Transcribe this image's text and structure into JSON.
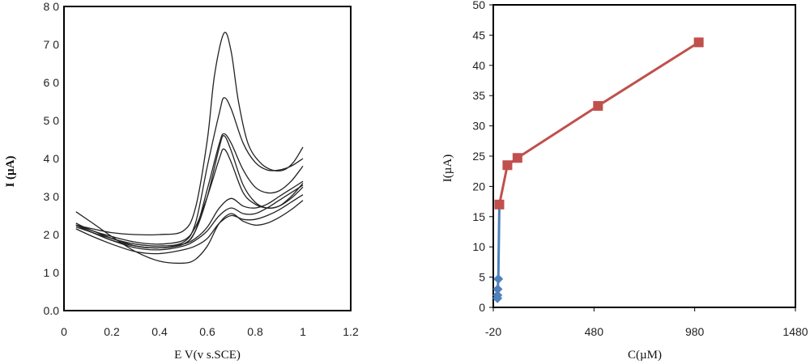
{
  "chart_data": [
    {
      "type": "line",
      "xlabel": "E V(v s.SCE)",
      "ylabel": "I (µA)",
      "xlim": [
        0,
        1.2
      ],
      "ylim": [
        0,
        80
      ],
      "xticks": [
        0,
        0.2,
        0.4,
        0.6,
        0.8,
        1,
        1.2
      ],
      "xtick_labels": [
        "0",
        "0.2",
        "0.4",
        "0.6",
        "0.8",
        "1",
        "1.2"
      ],
      "yticks": [
        0,
        10,
        20,
        30,
        40,
        50,
        60,
        70,
        80
      ],
      "ytick_labels": [
        "0.0",
        "1 0",
        "2 0",
        "3 0",
        "4 0",
        "5 0",
        "6 0",
        "7 0",
        "8 0"
      ],
      "grid": false,
      "line_color": "#222222",
      "series": [
        {
          "values": [
            [
              0.05,
              26
            ],
            [
              0.12,
              23
            ],
            [
              0.2,
              19.5
            ],
            [
              0.3,
              15.5
            ],
            [
              0.4,
              13
            ],
            [
              0.5,
              12.5
            ],
            [
              0.55,
              13.5
            ],
            [
              0.6,
              17
            ],
            [
              0.65,
              23
            ],
            [
              0.7,
              25.5
            ],
            [
              0.75,
              23.5
            ],
            [
              0.8,
              22.5
            ],
            [
              0.85,
              23
            ],
            [
              0.9,
              24.5
            ],
            [
              0.95,
              26.5
            ],
            [
              1.0,
              29
            ]
          ]
        },
        {
          "values": [
            [
              0.05,
              21.5
            ],
            [
              0.12,
              19.5
            ],
            [
              0.2,
              17.5
            ],
            [
              0.3,
              15.5
            ],
            [
              0.4,
              15
            ],
            [
              0.5,
              16
            ],
            [
              0.55,
              17
            ],
            [
              0.6,
              19
            ],
            [
              0.65,
              23
            ],
            [
              0.7,
              25
            ],
            [
              0.75,
              24
            ],
            [
              0.8,
              24
            ],
            [
              0.85,
              25
            ],
            [
              0.9,
              26.5
            ],
            [
              0.95,
              28.5
            ],
            [
              1.0,
              30.5
            ]
          ]
        },
        {
          "values": [
            [
              0.05,
              22.5
            ],
            [
              0.12,
              20.5
            ],
            [
              0.2,
              18.5
            ],
            [
              0.3,
              16.5
            ],
            [
              0.4,
              16
            ],
            [
              0.5,
              17
            ],
            [
              0.55,
              18.5
            ],
            [
              0.6,
              21
            ],
            [
              0.65,
              25
            ],
            [
              0.7,
              27
            ],
            [
              0.75,
              25.5
            ],
            [
              0.8,
              25.5
            ],
            [
              0.85,
              27
            ],
            [
              0.9,
              29
            ],
            [
              0.95,
              31
            ],
            [
              1.0,
              33
            ]
          ]
        },
        {
          "values": [
            [
              0.05,
              22.5
            ],
            [
              0.12,
              20.5
            ],
            [
              0.2,
              19
            ],
            [
              0.3,
              17
            ],
            [
              0.4,
              16.5
            ],
            [
              0.5,
              17.5
            ],
            [
              0.55,
              19
            ],
            [
              0.6,
              22
            ],
            [
              0.65,
              27
            ],
            [
              0.7,
              29.5
            ],
            [
              0.75,
              27.5
            ],
            [
              0.8,
              27
            ],
            [
              0.85,
              28
            ],
            [
              0.9,
              30
            ],
            [
              0.95,
              32
            ],
            [
              1.0,
              34
            ]
          ]
        },
        {
          "values": [
            [
              0.05,
              23
            ],
            [
              0.12,
              21
            ],
            [
              0.2,
              19.5
            ],
            [
              0.3,
              18
            ],
            [
              0.4,
              17.5
            ],
            [
              0.5,
              18.5
            ],
            [
              0.55,
              22
            ],
            [
              0.6,
              30
            ],
            [
              0.65,
              40
            ],
            [
              0.67,
              42.5
            ],
            [
              0.7,
              39
            ],
            [
              0.75,
              31
            ],
            [
              0.8,
              28
            ],
            [
              0.85,
              27
            ],
            [
              0.9,
              27.5
            ],
            [
              0.95,
              29.5
            ],
            [
              1.0,
              32.5
            ]
          ]
        },
        {
          "values": [
            [
              0.05,
              22.5
            ],
            [
              0.12,
              21
            ],
            [
              0.2,
              19
            ],
            [
              0.3,
              17
            ],
            [
              0.4,
              16.5
            ],
            [
              0.5,
              17.5
            ],
            [
              0.55,
              21
            ],
            [
              0.6,
              30
            ],
            [
              0.65,
              43
            ],
            [
              0.67,
              46
            ],
            [
              0.7,
              42
            ],
            [
              0.75,
              33
            ],
            [
              0.8,
              28.5
            ],
            [
              0.85,
              27
            ],
            [
              0.9,
              27.5
            ],
            [
              0.95,
              30
            ],
            [
              1.0,
              33.5
            ]
          ]
        },
        {
          "values": [
            [
              0.05,
              22
            ],
            [
              0.12,
              20.5
            ],
            [
              0.2,
              18.5
            ],
            [
              0.3,
              17
            ],
            [
              0.4,
              16.5
            ],
            [
              0.5,
              17.5
            ],
            [
              0.55,
              21
            ],
            [
              0.6,
              32
            ],
            [
              0.65,
              44
            ],
            [
              0.67,
              46.5
            ],
            [
              0.7,
              44
            ],
            [
              0.75,
              37
            ],
            [
              0.8,
              32.5
            ],
            [
              0.85,
              31
            ],
            [
              0.9,
              31.5
            ],
            [
              0.95,
              34
            ],
            [
              1.0,
              38
            ]
          ]
        },
        {
          "values": [
            [
              0.05,
              22.5
            ],
            [
              0.12,
              21
            ],
            [
              0.2,
              19
            ],
            [
              0.3,
              17.5
            ],
            [
              0.4,
              17
            ],
            [
              0.5,
              18
            ],
            [
              0.55,
              23
            ],
            [
              0.6,
              38
            ],
            [
              0.65,
              52
            ],
            [
              0.67,
              56
            ],
            [
              0.7,
              53
            ],
            [
              0.75,
              44
            ],
            [
              0.8,
              39
            ],
            [
              0.85,
              37
            ],
            [
              0.9,
              37
            ],
            [
              0.95,
              38
            ],
            [
              1.0,
              40
            ]
          ]
        },
        {
          "values": [
            [
              0.05,
              22.5
            ],
            [
              0.12,
              21.5
            ],
            [
              0.2,
              20.5
            ],
            [
              0.3,
              20
            ],
            [
              0.4,
              20
            ],
            [
              0.5,
              21
            ],
            [
              0.55,
              27
            ],
            [
              0.6,
              45
            ],
            [
              0.63,
              62
            ],
            [
              0.67,
              73
            ],
            [
              0.7,
              68
            ],
            [
              0.73,
              55
            ],
            [
              0.77,
              44
            ],
            [
              0.82,
              39
            ],
            [
              0.87,
              37
            ],
            [
              0.92,
              37
            ],
            [
              0.96,
              39
            ],
            [
              1.0,
              43
            ]
          ]
        }
      ]
    },
    {
      "type": "line",
      "xlabel": "C(µM)",
      "ylabel": "I(µA)",
      "xlim": [
        -20,
        1480
      ],
      "ylim": [
        0,
        50
      ],
      "xticks": [
        -20,
        480,
        980,
        1480
      ],
      "xtick_labels": [
        "-20",
        "480",
        "980",
        "1480"
      ],
      "yticks": [
        0,
        5,
        10,
        15,
        20,
        25,
        30,
        35,
        40,
        45,
        50
      ],
      "ytick_labels": [
        "0",
        "5",
        "10",
        "15",
        "20",
        "25",
        "30",
        "35",
        "40",
        "45",
        "50"
      ],
      "grid": false,
      "series": [
        {
          "marker": "diamond",
          "color": "#4f81bd",
          "x": [
            0.5,
            1,
            2,
            5,
            10
          ],
          "y": [
            1.5,
            2,
            3,
            4.7,
            17
          ]
        },
        {
          "marker": "square",
          "color": "#c0504d",
          "x": [
            10,
            50,
            100,
            500,
            1000
          ],
          "y": [
            17,
            23.5,
            24.7,
            33.3,
            43.8
          ]
        }
      ]
    }
  ]
}
